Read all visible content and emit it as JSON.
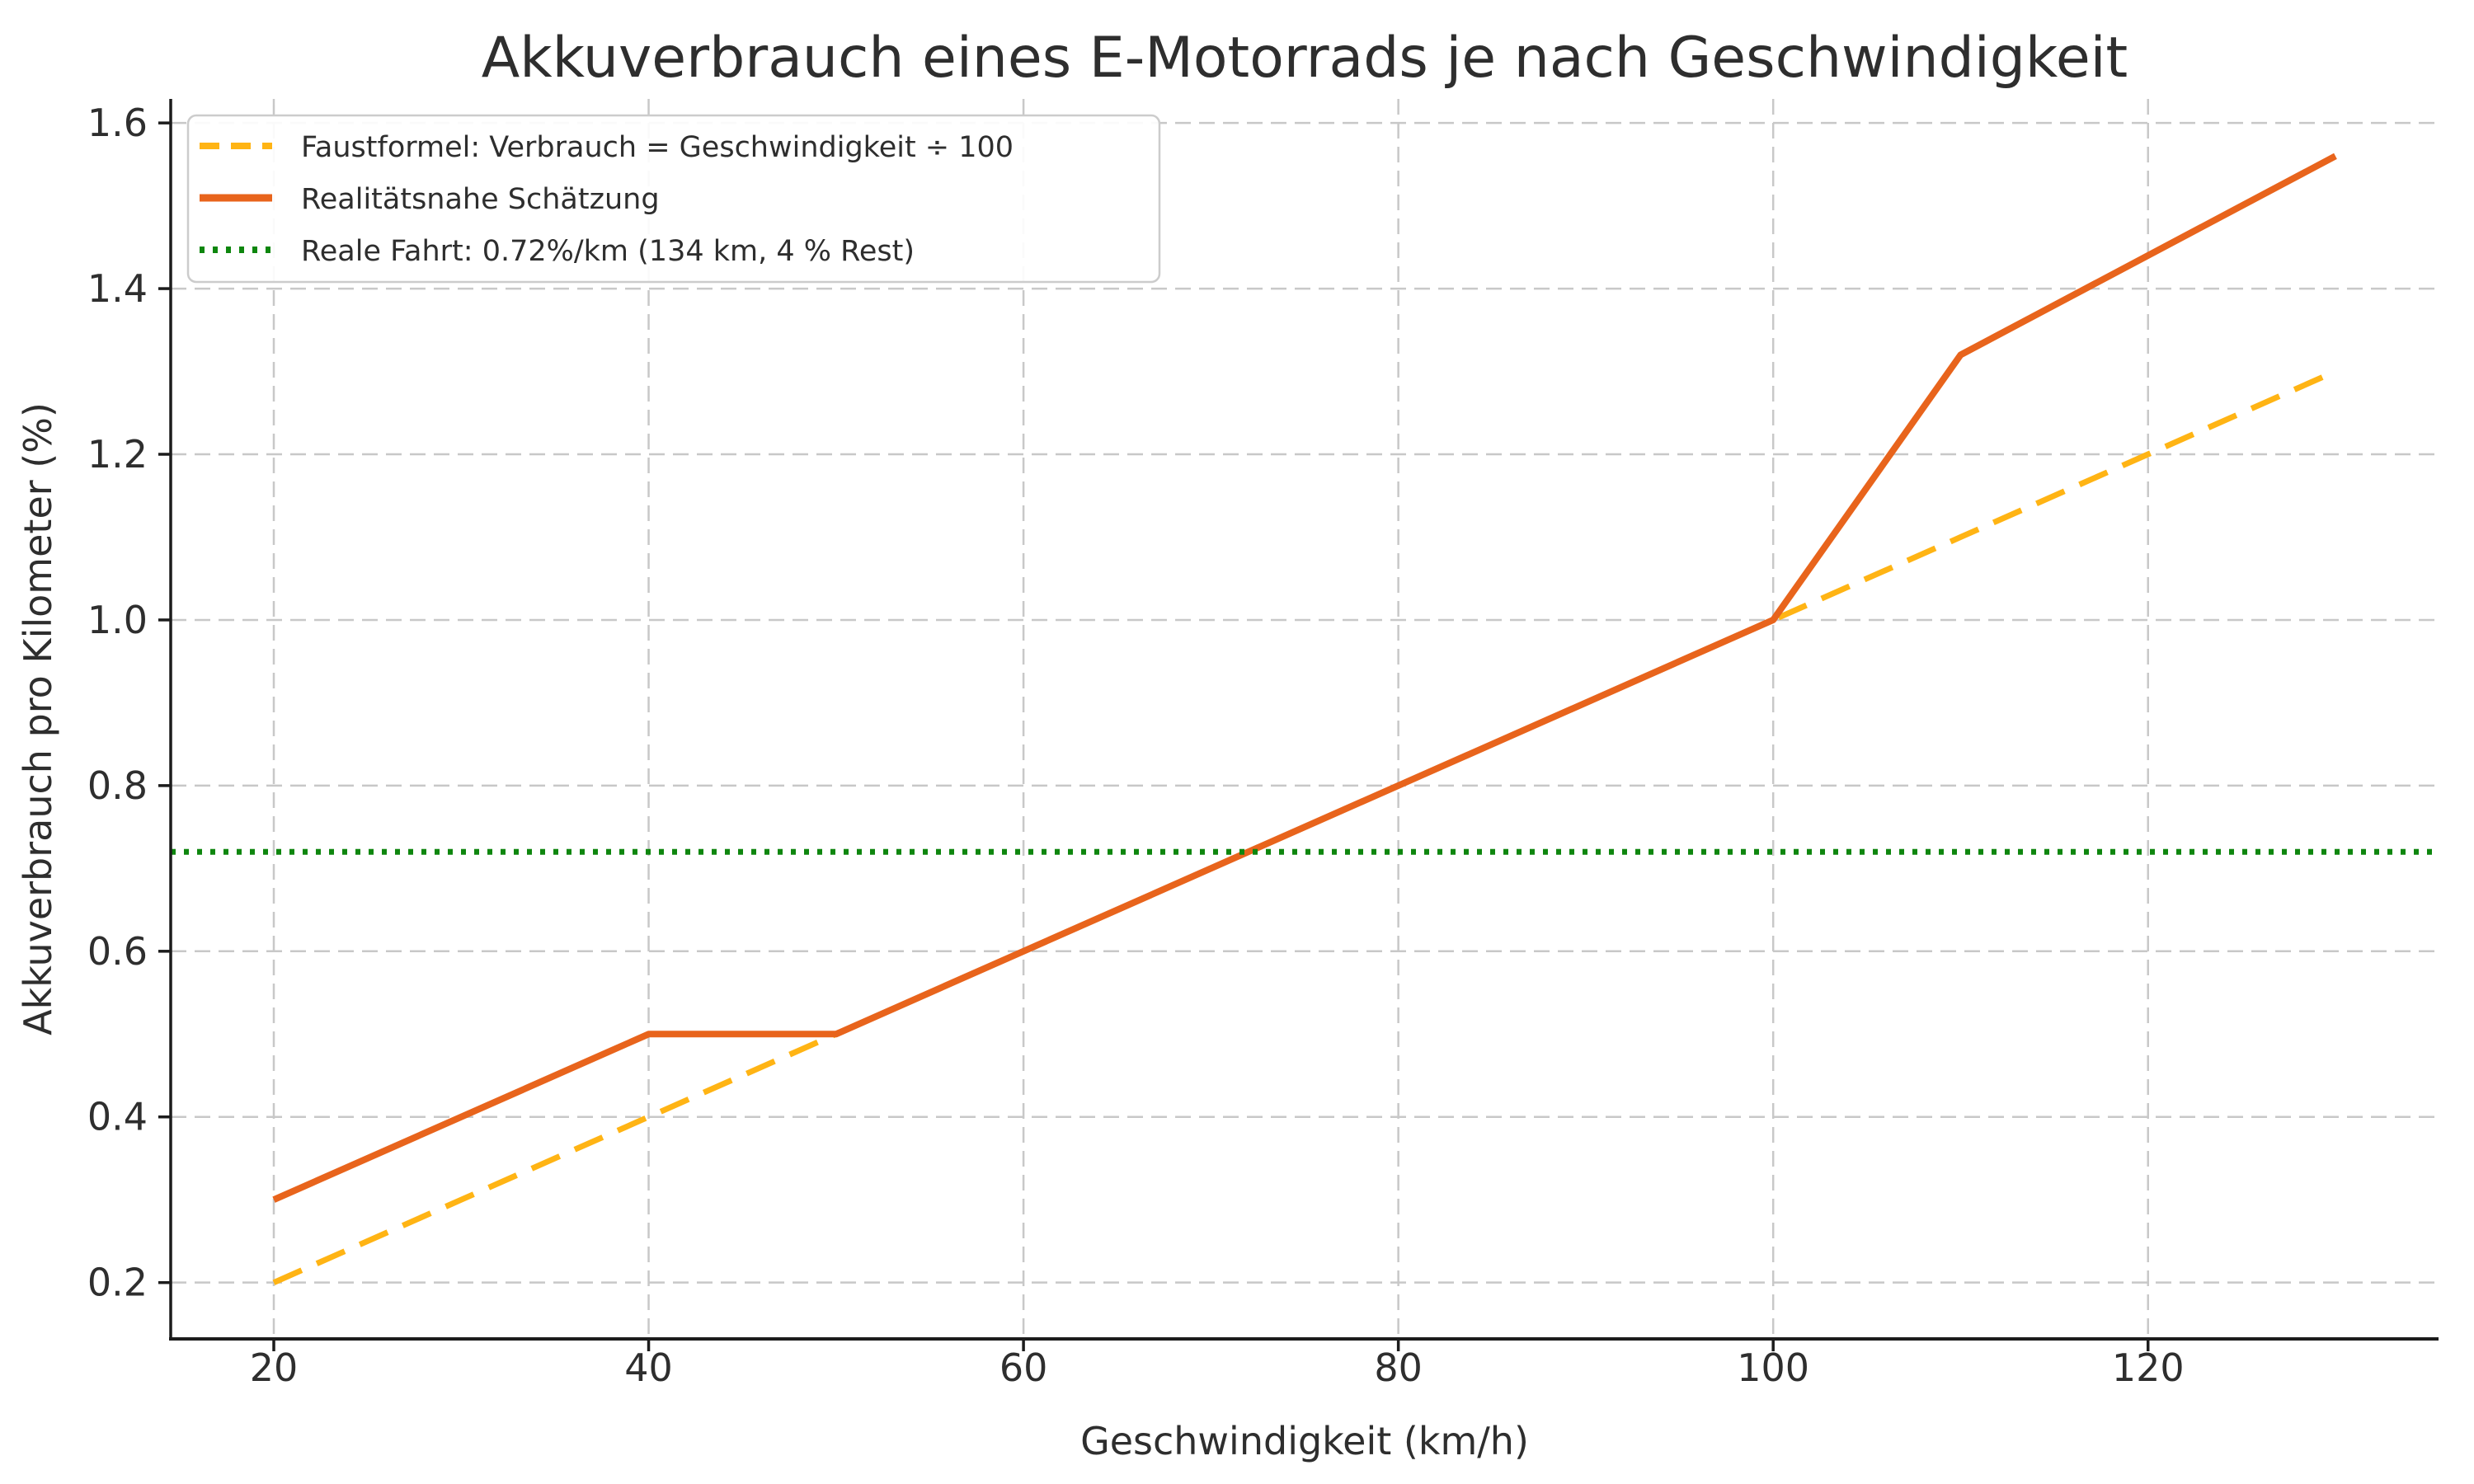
{
  "chart_data": {
    "type": "line",
    "title": "Akkuverbrauch eines E-Motorrads je nach Geschwindigkeit",
    "xlabel": "Geschwindigkeit (km/h)",
    "ylabel": "Akkuverbrauch pro Kilometer (%)",
    "xlim": [
      14.5,
      135.5
    ],
    "ylim": [
      0.132,
      1.629
    ],
    "x_ticks": [
      20,
      40,
      60,
      80,
      100,
      120
    ],
    "x_tick_labels": [
      "20",
      "40",
      "60",
      "80",
      "100",
      "120"
    ],
    "y_ticks": [
      0.2,
      0.4,
      0.6,
      0.8,
      1.0,
      1.2,
      1.4,
      1.6
    ],
    "y_tick_labels": [
      "0.2",
      "0.4",
      "0.6",
      "0.8",
      "1.0",
      "1.2",
      "1.4",
      "1.6"
    ],
    "grid": true,
    "grid_style": "dashed",
    "legend_position": "upper left",
    "series": [
      {
        "name": "Faustformel: Verbrauch = Geschwindigkeit ÷ 100",
        "style": "dashed",
        "color": "#FFB414",
        "x": [
          20,
          30,
          40,
          50,
          60,
          70,
          80,
          90,
          100,
          110,
          120,
          130
        ],
        "y": [
          0.2,
          0.3,
          0.4,
          0.5,
          0.6,
          0.7,
          0.8,
          0.9,
          1.0,
          1.1,
          1.2,
          1.3
        ]
      },
      {
        "name": "Realitätsnahe Schätzung",
        "style": "solid",
        "color": "#E8641C",
        "x": [
          20,
          40,
          50,
          100,
          110,
          130
        ],
        "y": [
          0.3,
          0.5,
          0.5,
          1.0,
          1.32,
          1.56
        ]
      },
      {
        "name": "Reale Fahrt: 0.72%/km (134 km, 4 % Rest)",
        "style": "dotted",
        "color": "#0E860E",
        "x": [
          14.5,
          135.5
        ],
        "y": [
          0.72,
          0.72
        ]
      }
    ],
    "colors": {
      "text": "#2e2e2e",
      "spine": "#1c1c1c",
      "grid": "#c8c8c8",
      "background": "#ffffff",
      "legend_border": "#cccccc"
    }
  }
}
